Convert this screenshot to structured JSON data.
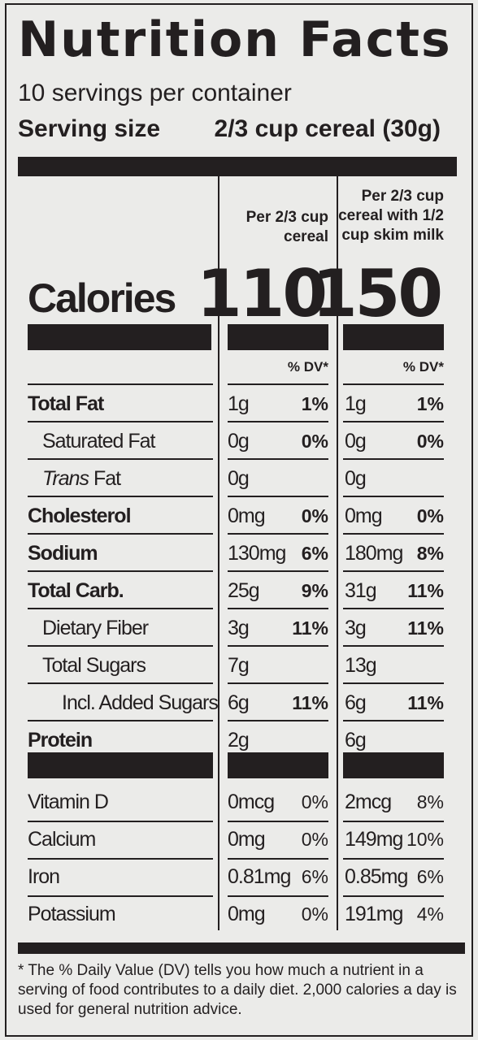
{
  "title": "Nutrition Facts",
  "servings_per_container": "10 servings per container",
  "serving_size_label": "Serving size",
  "serving_size_value": "2/3 cup cereal (30g)",
  "columns": {
    "col1": [
      "Per 2/3 cup",
      "cereal"
    ],
    "col2": [
      "Per 2/3 cup",
      "cereal with 1/2",
      "cup skim milk"
    ]
  },
  "calories": {
    "label": "Calories",
    "col1": "110",
    "col2": "150"
  },
  "dv_header": "% DV*",
  "nutrients": [
    {
      "label": "Total Fat",
      "a1": "1g",
      "p1": "1%",
      "a2": "1g",
      "p2": "1%"
    },
    {
      "label": "Saturated Fat",
      "a1": "0g",
      "p1": "0%",
      "a2": "0g",
      "p2": "0%"
    },
    {
      "label_italic": "Trans",
      "label_rest": " Fat",
      "a1": "0g",
      "p1": "",
      "a2": "0g",
      "p2": ""
    },
    {
      "label": "Cholesterol",
      "a1": "0mg",
      "p1": "0%",
      "a2": "0mg",
      "p2": "0%"
    },
    {
      "label": "Sodium",
      "a1": "130mg",
      "p1": "6%",
      "a2": "180mg",
      "p2": "8%"
    },
    {
      "label": "Total Carb.",
      "a1": "25g",
      "p1": "9%",
      "a2": "31g",
      "p2": "11%"
    },
    {
      "label": "Dietary Fiber",
      "a1": "3g",
      "p1": "11%",
      "a2": "3g",
      "p2": "11%"
    },
    {
      "label": "Total Sugars",
      "a1": "7g",
      "p1": "",
      "a2": "13g",
      "p2": ""
    },
    {
      "label": "Incl. Added Sugars",
      "a1": "6g",
      "p1": "11%",
      "a2": "6g",
      "p2": "11%"
    },
    {
      "label": "Protein",
      "a1": "2g",
      "p1": "",
      "a2": "6g",
      "p2": ""
    }
  ],
  "vitamins": [
    {
      "label": "Vitamin D",
      "a1": "0mcg",
      "p1": "0%",
      "a2": "2mcg",
      "p2": "8%"
    },
    {
      "label": "Calcium",
      "a1": "0mg",
      "p1": "0%",
      "a2": "149mg",
      "p2": "10%"
    },
    {
      "label": "Iron",
      "a1": "0.81mg",
      "p1": "6%",
      "a2": "0.85mg",
      "p2": "6%"
    },
    {
      "label": "Potassium",
      "a1": "0mg",
      "p1": "0%",
      "a2": "191mg",
      "p2": "4%"
    }
  ],
  "footnote": "* The % Daily Value (DV) tells you how much a nutrient in a serving of food contributes to a daily diet. 2,000 calories a day is used for general nutrition advice."
}
